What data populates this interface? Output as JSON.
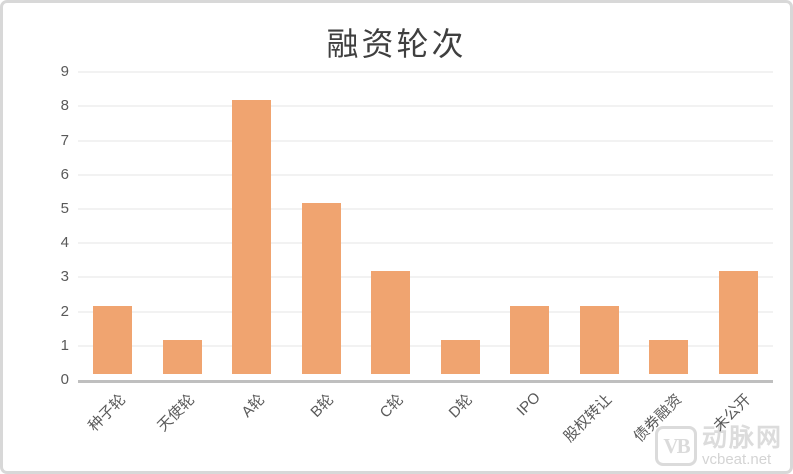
{
  "chart_data": {
    "type": "bar",
    "title": "融资轮次",
    "categories": [
      "种子轮",
      "天使轮",
      "A轮",
      "B轮",
      "C轮",
      "D轮",
      "IPO",
      "股权转让",
      "债券融资",
      "未公开"
    ],
    "values": [
      2,
      1,
      8,
      5,
      3,
      1,
      2,
      2,
      1,
      3
    ],
    "xlabel": "",
    "ylabel": "",
    "ylim": [
      0,
      9
    ],
    "ytick_step": 1,
    "grid": true,
    "legend": "none",
    "xlabel_rotation_deg": -45,
    "bar_color": "#F0A470"
  },
  "watermark": {
    "logo_text": "VB",
    "site_name": "动脉网",
    "site_url": "vcbeat.net"
  },
  "colors": {
    "bar": "#F0A470",
    "gridline": "#F2F2F2",
    "axis_line": "#BFBFBF",
    "axis_text": "#595959",
    "title_text": "#3F3F3F",
    "frame_border": "#D8D8D8",
    "watermark": "#DBDBDB",
    "background": "#FFFFFF"
  }
}
